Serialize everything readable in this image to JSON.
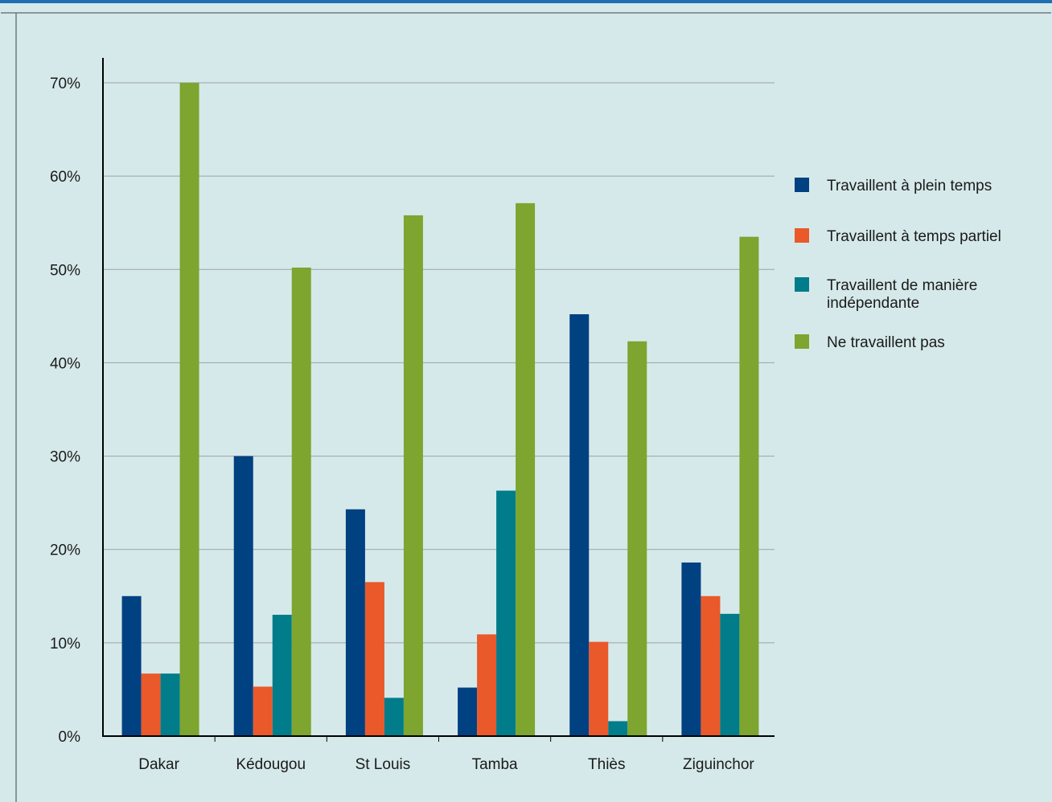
{
  "colors": {
    "background": "#d6e9ea",
    "frame": "#6f7b80",
    "gridline": "#9aa3a6",
    "axis": "#000000",
    "top_stripe": "#1f6fb2"
  },
  "chart_data": {
    "type": "bar",
    "categories": [
      "Dakar",
      "Kédougou",
      "St Louis",
      "Tamba",
      "Thiès",
      "Ziguinchor"
    ],
    "series": [
      {
        "name": "Travaillent à plein temps",
        "color": "#004182",
        "values": [
          15,
          30,
          24.3,
          5.2,
          45.2,
          18.6
        ]
      },
      {
        "name": "Travaillent à temps partiel",
        "color": "#e9592a",
        "values": [
          6.7,
          5.3,
          16.5,
          10.9,
          10.1,
          15
        ]
      },
      {
        "name": "Travaillent de manière indépendante",
        "color": "#007c8a",
        "values": [
          6.7,
          13,
          4.1,
          26.3,
          1.6,
          13.1
        ]
      },
      {
        "name": "Ne travaillent pas",
        "color": "#7da52f",
        "values": [
          70,
          50.2,
          55.8,
          57.1,
          42.3,
          53.5
        ]
      }
    ],
    "legend": [
      {
        "lines": [
          "Travaillent à plein temps"
        ]
      },
      {
        "lines": [
          "Travaillent à temps partiel"
        ]
      },
      {
        "lines": [
          "Travaillent de manière",
          "indépendante"
        ]
      },
      {
        "lines": [
          "Ne travaillent pas"
        ]
      }
    ],
    "y_ticks": [
      {
        "value": 0,
        "label": "0%"
      },
      {
        "value": 10,
        "label": "10%"
      },
      {
        "value": 20,
        "label": "20%"
      },
      {
        "value": 30,
        "label": "30%"
      },
      {
        "value": 40,
        "label": "40%"
      },
      {
        "value": 50,
        "label": "50%"
      },
      {
        "value": 60,
        "label": "60%"
      },
      {
        "value": 70,
        "label": "70%"
      }
    ],
    "ylim": [
      0,
      70
    ],
    "grid": true,
    "legend_position": "right",
    "title": "",
    "xlabel": "",
    "ylabel": ""
  }
}
